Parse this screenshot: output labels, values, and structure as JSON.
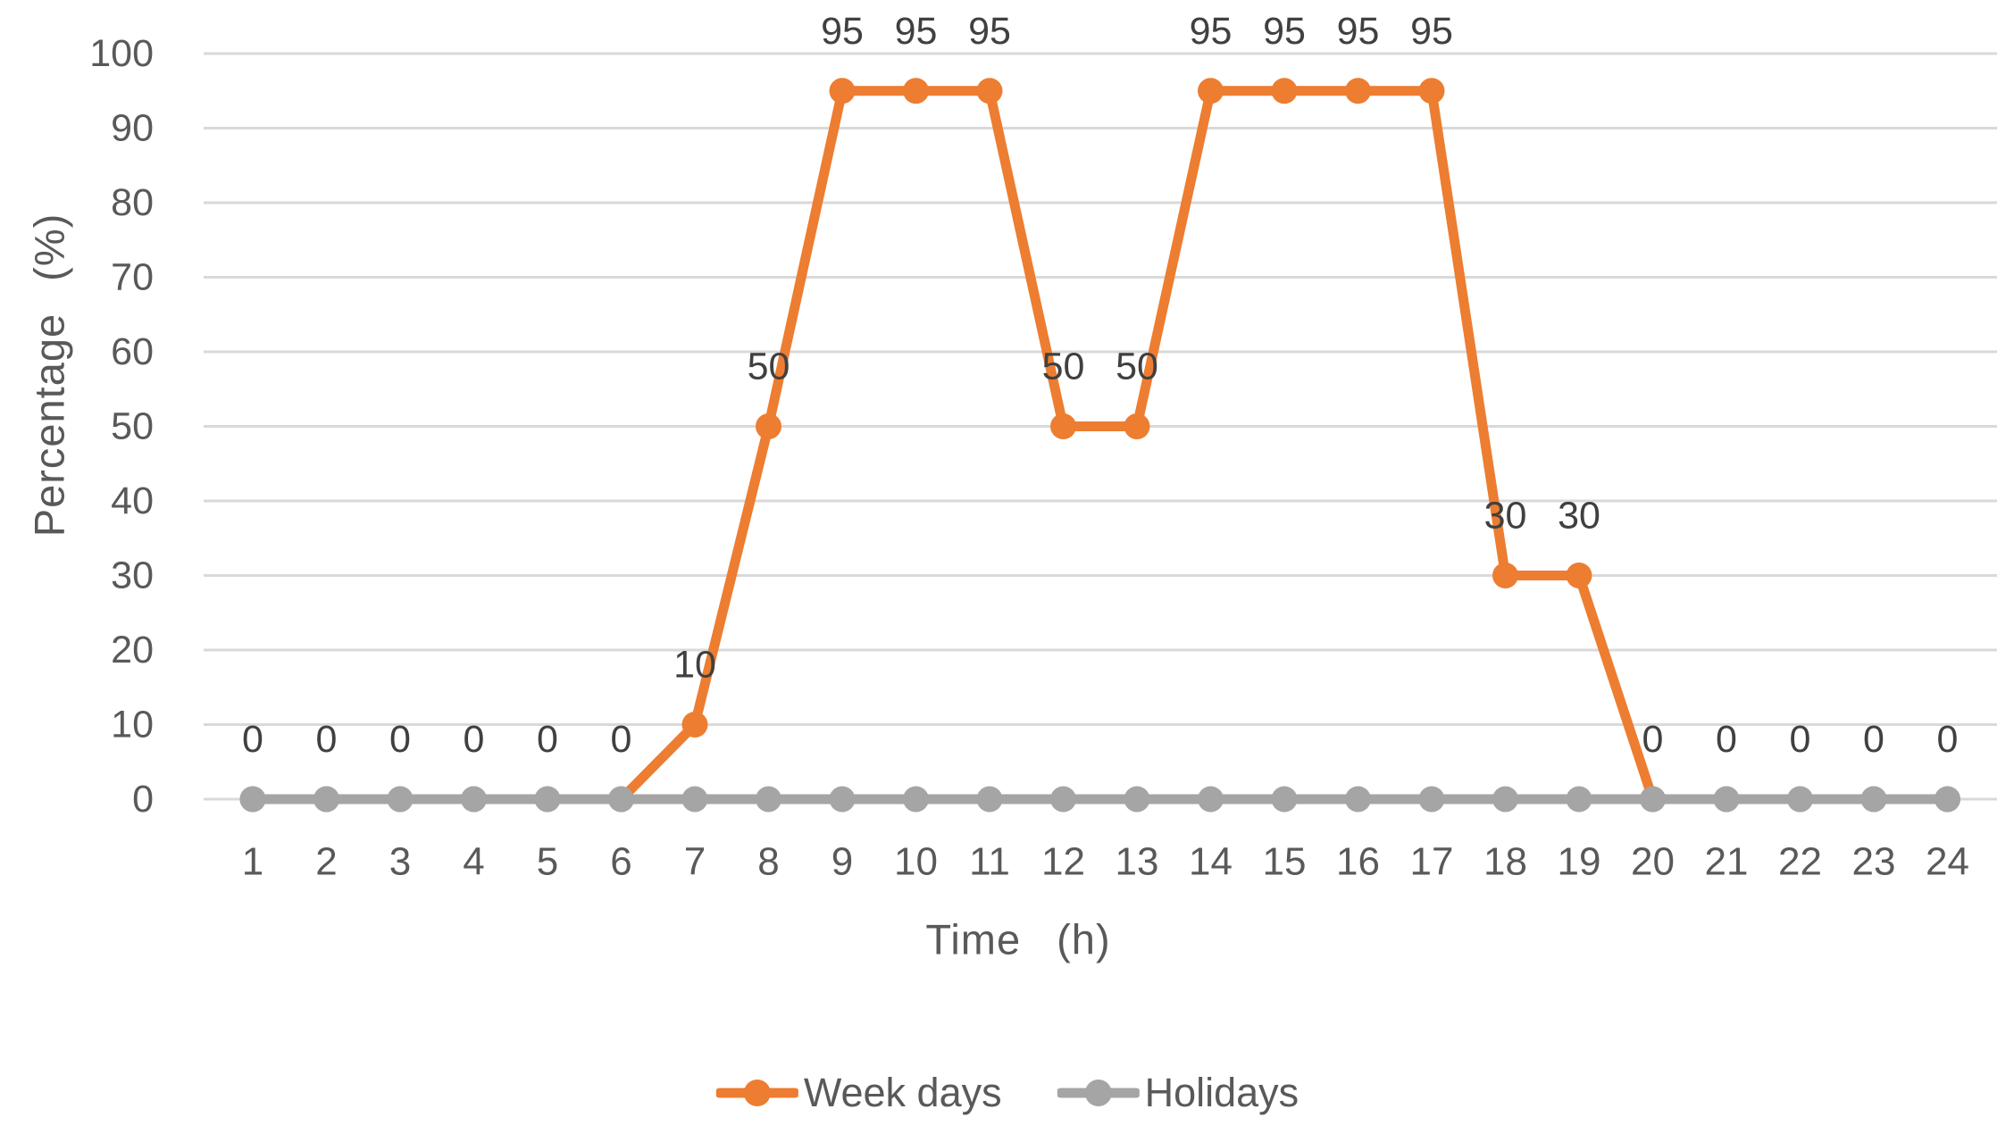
{
  "chart_data": {
    "type": "line",
    "title": "",
    "xlabel": "Time (h)",
    "ylabel": "Percentage (%)",
    "categories": [
      "1",
      "2",
      "3",
      "4",
      "5",
      "6",
      "7",
      "8",
      "9",
      "10",
      "11",
      "12",
      "13",
      "14",
      "15",
      "16",
      "17",
      "18",
      "19",
      "20",
      "21",
      "22",
      "23",
      "24"
    ],
    "series": [
      {
        "name": "Week days",
        "color": "#ED7D31",
        "values": [
          0,
          0,
          0,
          0,
          0,
          0,
          10,
          50,
          95,
          95,
          95,
          50,
          50,
          95,
          95,
          95,
          95,
          30,
          30,
          0,
          0,
          0,
          0,
          0
        ],
        "show_point_labels": true
      },
      {
        "name": "Holidays",
        "color": "#A5A5A5",
        "values": [
          0,
          0,
          0,
          0,
          0,
          0,
          0,
          0,
          0,
          0,
          0,
          0,
          0,
          0,
          0,
          0,
          0,
          0,
          0,
          0,
          0,
          0,
          0,
          0
        ],
        "show_point_labels": false
      }
    ],
    "ylim": [
      0,
      100
    ],
    "yticks": [
      0,
      10,
      20,
      30,
      40,
      50,
      60,
      70,
      80,
      90,
      100
    ],
    "grid": true,
    "legend_position": "bottom",
    "colors": {
      "grid": "#D9D9D9",
      "tick_label": "#595959",
      "data_label": "#404040"
    }
  }
}
